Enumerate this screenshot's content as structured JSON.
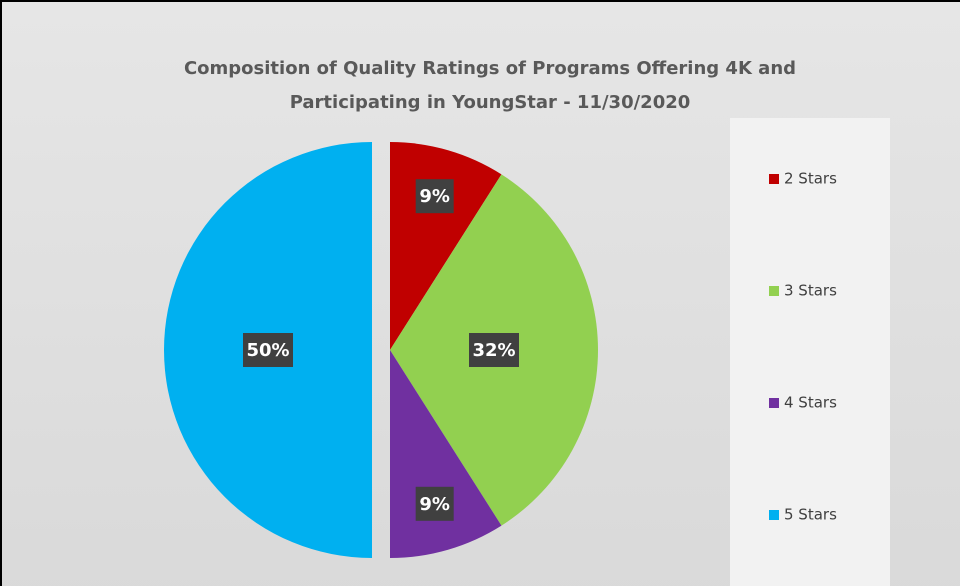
{
  "chart_data": {
    "type": "pie",
    "title": "Composition of Quality Ratings of Programs Offering 4K and Participating in YoungStar - 11/30/2020",
    "categories": [
      "2 Stars",
      "3 Stars",
      "4 Stars",
      "5 Stars"
    ],
    "values": [
      9,
      32,
      9,
      50
    ],
    "value_labels": [
      "9%",
      "32%",
      "9%",
      "50%"
    ],
    "colors": [
      "#c00000",
      "#92d050",
      "#7030a0",
      "#00b0f0"
    ],
    "legend": "right"
  }
}
